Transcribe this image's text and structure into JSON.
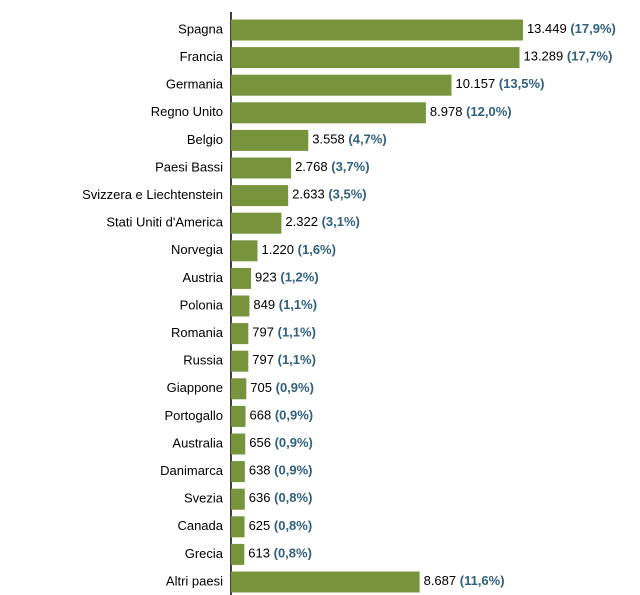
{
  "chart_data": {
    "type": "barh",
    "categories": [
      "Spagna",
      "Francia",
      "Germania",
      "Regno Unito",
      "Belgio",
      "Paesi Bassi",
      "Svizzera e Liechtenstein",
      "Stati Uniti d'America",
      "Norvegia",
      "Austria",
      "Polonia",
      "Romania",
      "Russia",
      "Giappone",
      "Portogallo",
      "Australia",
      "Danimarca",
      "Svezia",
      "Canada",
      "Grecia",
      "Altri paesi"
    ],
    "values": [
      13449,
      13289,
      10157,
      8978,
      3558,
      2768,
      2633,
      2322,
      1220,
      923,
      849,
      797,
      797,
      705,
      668,
      656,
      638,
      636,
      625,
      613,
      8687
    ],
    "value_labels": [
      "13.449",
      "13.289",
      "10.157",
      "8.978",
      "3.558",
      "2.768",
      "2.633",
      "2.322",
      "1.220",
      "923",
      "849",
      "797",
      "797",
      "705",
      "668",
      "656",
      "638",
      "636",
      "625",
      "613",
      "8.687"
    ],
    "share_labels": [
      "(17,9%)",
      "(17,7%)",
      "(13,5%)",
      "(12,0%)",
      "(4,7%)",
      "(3,7%)",
      "(3,5%)",
      "(3,1%)",
      "(1,6%)",
      "(1,2%)",
      "(1,1%)",
      "(1,1%)",
      "(1,1%)",
      "(0,9%)",
      "(0,9%)",
      "(0,9%)",
      "(0,9%)",
      "(0,8%)",
      "(0,8%)",
      "(0,8%)",
      "(11,6%)"
    ],
    "color": "#77933c",
    "xlim": [
      0,
      18840
    ]
  }
}
